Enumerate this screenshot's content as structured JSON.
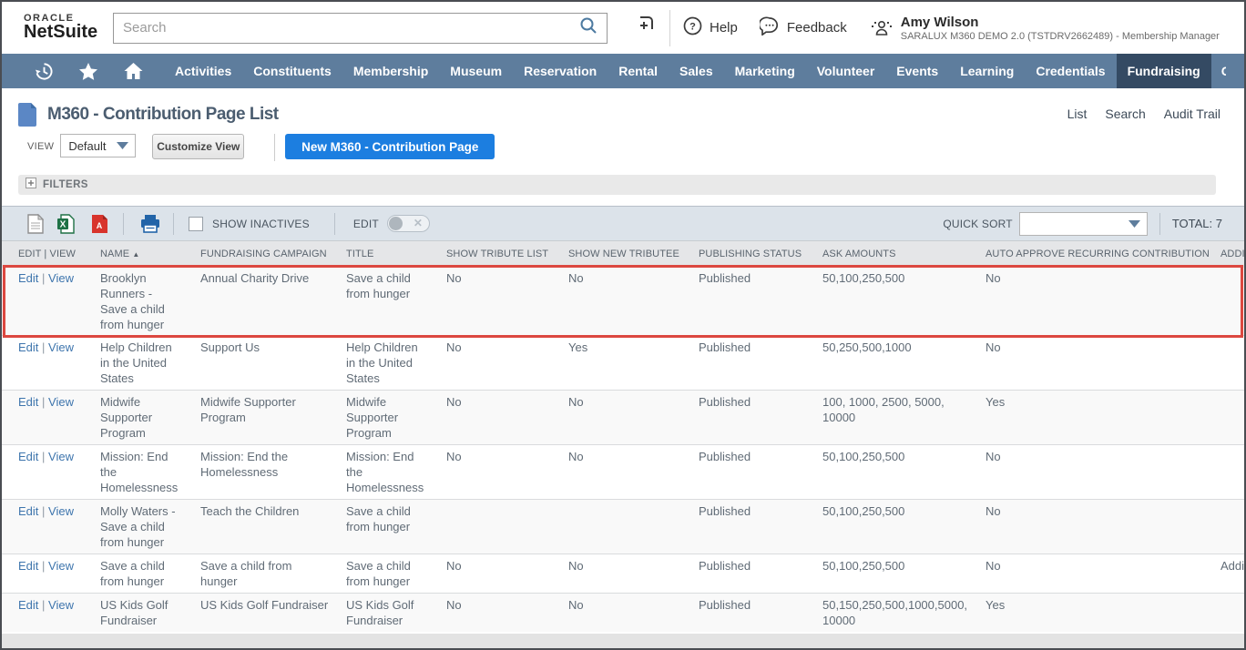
{
  "topbar": {
    "logo_oracle": "ORACLE",
    "logo_netsuite": "NetSuite",
    "search_placeholder": "Search",
    "help_label": "Help",
    "feedback_label": "Feedback",
    "user": {
      "name": "Amy Wilson",
      "role": "SARALUX M360 DEMO 2.0 (TSTDRV2662489) - Membership Manager"
    }
  },
  "nav": {
    "items": [
      "Activities",
      "Constituents",
      "Membership",
      "Museum",
      "Reservation",
      "Rental",
      "Sales",
      "Marketing",
      "Volunteer",
      "Events",
      "Learning",
      "Credentials",
      "Fundraising"
    ],
    "active": "Fundraising",
    "overflow_partial": "C"
  },
  "page": {
    "title": "M360 - Contribution Page List",
    "links": [
      "List",
      "Search",
      "Audit Trail"
    ],
    "view_label": "VIEW",
    "view_value": "Default",
    "customize_view_label": "Customize View",
    "new_button_label": "New M360 - Contribution Page",
    "filters_label": "FILTERS"
  },
  "toolbar": {
    "show_inactives_label": "SHOW INACTIVES",
    "edit_label": "EDIT",
    "quick_sort_label": "QUICK SORT",
    "total_label": "TOTAL: 7"
  },
  "table": {
    "columns": [
      "EDIT | VIEW",
      "NAME",
      "FUNDRAISING CAMPAIGN",
      "TITLE",
      "SHOW TRIBUTE LIST",
      "SHOW NEW TRIBUTEE",
      "PUBLISHING STATUS",
      "ASK AMOUNTS",
      "AUTO APPROVE RECURRING CONTRIBUTION",
      "ADDIT"
    ],
    "sort_column": "NAME",
    "edit_label": "Edit",
    "view_label": "View",
    "rows": [
      {
        "name": "Brooklyn Runners - Save a child from hunger",
        "campaign": "Annual Charity Drive",
        "title": "Save a child from hunger",
        "show_tribute_list": "No",
        "show_new_tributee": "No",
        "publishing_status": "Published",
        "ask_amounts": "50,100,250,500",
        "auto_approve": "No",
        "additional": "",
        "highlighted": true
      },
      {
        "name": "Help Children in the United States",
        "campaign": "Support Us",
        "title": "Help Children in the United States",
        "show_tribute_list": "No",
        "show_new_tributee": "Yes",
        "publishing_status": "Published",
        "ask_amounts": "50,250,500,1000",
        "auto_approve": "No",
        "additional": "",
        "highlighted": false
      },
      {
        "name": "Midwife Supporter Program",
        "campaign": "Midwife Supporter Program",
        "title": "Midwife Supporter Program",
        "show_tribute_list": "No",
        "show_new_tributee": "No",
        "publishing_status": "Published",
        "ask_amounts": "100, 1000, 2500, 5000, 10000",
        "auto_approve": "Yes",
        "additional": "",
        "highlighted": false
      },
      {
        "name": "Mission: End the Homelessness",
        "campaign": "Mission: End the Homelessness",
        "title": "Mission: End the Homelessness",
        "show_tribute_list": "No",
        "show_new_tributee": "No",
        "publishing_status": "Published",
        "ask_amounts": "50,100,250,500",
        "auto_approve": "No",
        "additional": "",
        "highlighted": false
      },
      {
        "name": "Molly Waters - Save a child from hunger",
        "campaign": "Teach the Children",
        "title": "Save a child from hunger",
        "show_tribute_list": "",
        "show_new_tributee": "",
        "publishing_status": "Published",
        "ask_amounts": "50,100,250,500",
        "auto_approve": "No",
        "additional": "",
        "highlighted": false
      },
      {
        "name": "Save a child from hunger",
        "campaign": "Save a child from hunger",
        "title": "Save a child from hunger",
        "show_tribute_list": "No",
        "show_new_tributee": "No",
        "publishing_status": "Published",
        "ask_amounts": "50,100,250,500",
        "auto_approve": "No",
        "additional": "Addit",
        "highlighted": false
      },
      {
        "name": "US Kids Golf Fundraiser",
        "campaign": "US Kids Golf Fundraiser",
        "title": "US Kids Golf Fundraiser",
        "show_tribute_list": "No",
        "show_new_tributee": "No",
        "publishing_status": "Published",
        "ask_amounts": "50,150,250,500,1000,5000, 10000",
        "auto_approve": "Yes",
        "additional": "",
        "highlighted": false
      }
    ]
  }
}
